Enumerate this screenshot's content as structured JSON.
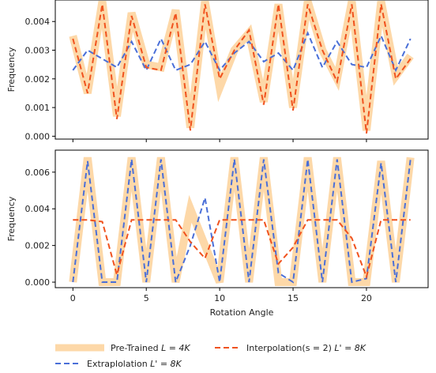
{
  "chart_data": [
    {
      "type": "line",
      "xlabel": "",
      "ylabel": "Frequency",
      "xlim": [
        -1.2,
        24.2
      ],
      "ylim": [
        -0.0001,
        0.00475
      ],
      "yticks": [
        0.0,
        0.001,
        0.002,
        0.003,
        0.004
      ],
      "ytick_labels": [
        "0.000",
        "0.001",
        "0.002",
        "0.003",
        "0.004"
      ],
      "xticks": [
        0,
        5,
        10,
        15,
        20
      ],
      "xtick_labels": [
        "",
        "",
        "",
        "",
        ""
      ],
      "x": [
        0,
        1,
        2,
        3,
        4,
        5,
        6,
        7,
        8,
        9,
        10,
        11,
        12,
        13,
        14,
        15,
        16,
        17,
        18,
        19,
        20,
        21,
        22,
        23
      ],
      "series": [
        {
          "name": "Pre-Trained $L = 4K$",
          "key": "pretrained",
          "color": "#fdd8a8",
          "style": "solid-thick",
          "values": [
            0.0035,
            0.0015,
            0.0047,
            0.0007,
            0.0043,
            0.0025,
            0.0024,
            0.0044,
            0.0003,
            0.0047,
            0.0017,
            0.003,
            0.0036,
            0.0012,
            0.0046,
            0.001,
            0.0047,
            0.003,
            0.002,
            0.0047,
            0.0002,
            0.0047,
            0.0021,
            0.0028
          ]
        },
        {
          "name": "Extraplolation $L' = 8K$",
          "key": "extrapolation",
          "color": "#4a6fd8",
          "style": "dashed",
          "values": [
            0.0023,
            0.003,
            0.0027,
            0.0024,
            0.0033,
            0.0023,
            0.0034,
            0.0023,
            0.0025,
            0.0033,
            0.0023,
            0.0029,
            0.0033,
            0.0026,
            0.0029,
            0.0023,
            0.0036,
            0.0024,
            0.0033,
            0.0025,
            0.0024,
            0.0035,
            0.0023,
            0.0034
          ]
        },
        {
          "name": "Interpolation$(s=2)$ $L' = 8K$",
          "key": "interpolation",
          "color": "#f0521e",
          "style": "dashed",
          "values": [
            0.0034,
            0.0015,
            0.0046,
            0.0006,
            0.0042,
            0.0024,
            0.0023,
            0.0043,
            0.0002,
            0.0046,
            0.002,
            0.003,
            0.0037,
            0.0011,
            0.0046,
            0.0009,
            0.0046,
            0.003,
            0.0019,
            0.0046,
            0.0001,
            0.0046,
            0.002,
            0.0027
          ]
        }
      ]
    },
    {
      "type": "line",
      "xlabel": "Rotation Angle",
      "ylabel": "Frequency",
      "xlim": [
        -1.2,
        24.2
      ],
      "ylim": [
        -0.0003,
        0.0072
      ],
      "yticks": [
        0.0,
        0.002,
        0.004,
        0.006
      ],
      "ytick_labels": [
        "0.000",
        "0.002",
        "0.004",
        "0.006"
      ],
      "xticks": [
        0,
        5,
        10,
        15,
        20
      ],
      "xtick_labels": [
        "0",
        "5",
        "10",
        "15",
        "20"
      ],
      "x": [
        0,
        1,
        2,
        3,
        4,
        5,
        6,
        7,
        8,
        9,
        10,
        11,
        12,
        13,
        14,
        15,
        16,
        17,
        18,
        19,
        20,
        21,
        22,
        23
      ],
      "series": [
        {
          "name": "Pre-Trained $L = 4K$",
          "key": "pretrained",
          "color": "#fdd8a8",
          "style": "solid-thick",
          "values": [
            0.0,
            0.0068,
            0.0,
            0.0,
            0.0068,
            0.0,
            0.0068,
            0.0,
            0.004,
            0.002,
            0.0,
            0.0068,
            0.0,
            0.0068,
            0.0,
            0.0,
            0.0068,
            0.0,
            0.0068,
            0.0,
            0.0,
            0.0066,
            0.0,
            0.0068
          ]
        },
        {
          "name": "Extraplolation $L' = 8K$",
          "key": "extrapolation",
          "color": "#4a6fd8",
          "style": "dashed",
          "values": [
            0.0,
            0.0066,
            0.0,
            0.0,
            0.0067,
            0.0,
            0.0067,
            0.0,
            0.002,
            0.0046,
            0.0,
            0.0067,
            0.0,
            0.0067,
            0.0005,
            0.0,
            0.0067,
            0.0,
            0.0067,
            0.0,
            0.0002,
            0.0065,
            0.0,
            0.0067
          ]
        },
        {
          "name": "Interpolation$(s=2)$ $L' = 8K$",
          "key": "interpolation",
          "color": "#f0521e",
          "style": "dashed",
          "values": [
            0.0034,
            0.0034,
            0.0033,
            0.0004,
            0.0034,
            0.0034,
            0.0034,
            0.0034,
            0.0022,
            0.0013,
            0.0034,
            0.0034,
            0.0034,
            0.0034,
            0.001,
            0.0019,
            0.0034,
            0.0034,
            0.0034,
            0.0024,
            0.0003,
            0.0034,
            0.0034,
            0.0034
          ]
        }
      ]
    }
  ],
  "legend": {
    "placement": "bottom",
    "items": [
      {
        "key": "pretrained",
        "label_main": "Pre-Trained ",
        "label_math": "L = 4K"
      },
      {
        "key": "interpolation",
        "label_main": "Interpolation(s = 2) ",
        "label_math": "L' = 8K"
      },
      {
        "key": "extrapolation",
        "label_main": "Extraplolation ",
        "label_math": "L' = 8K"
      }
    ]
  }
}
